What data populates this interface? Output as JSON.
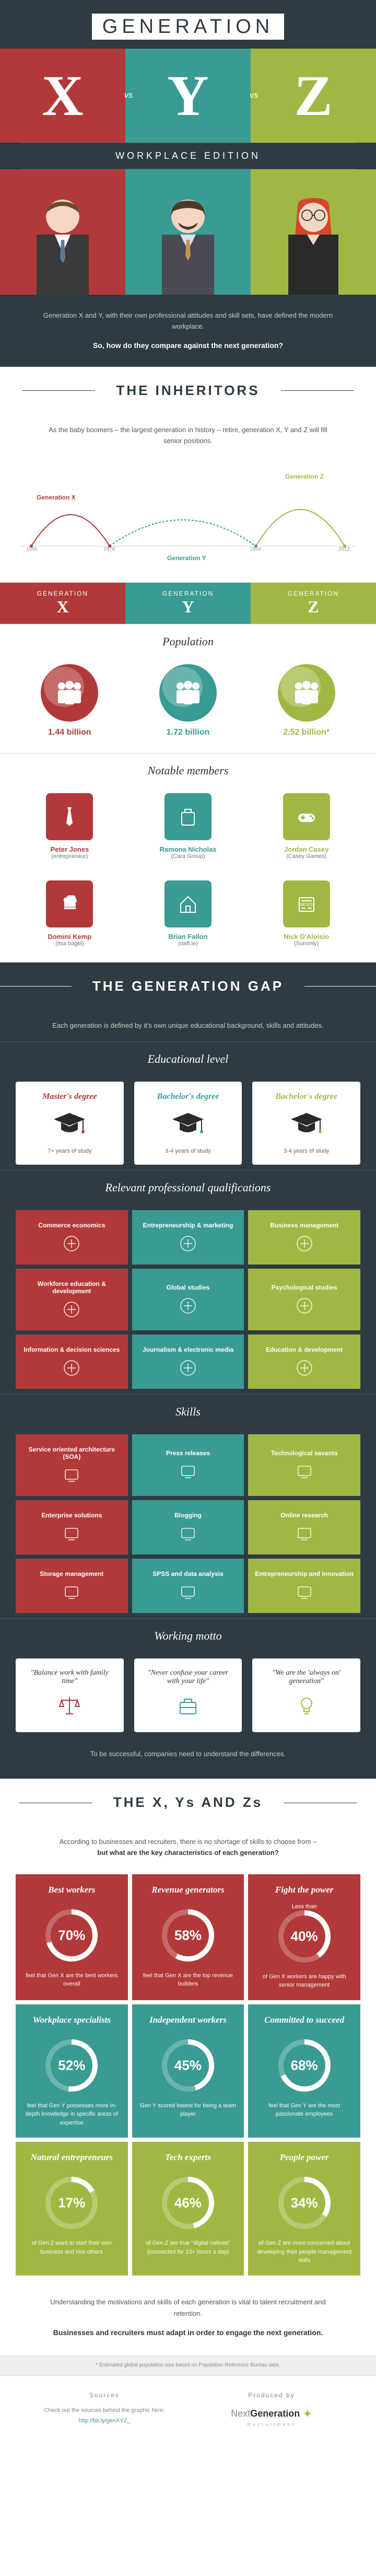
{
  "colors": {
    "x": "#b23939",
    "y": "#3a9b93",
    "z": "#a0b843",
    "dark": "#2e3b42"
  },
  "header": {
    "title_word": "GENERATION",
    "letters": [
      "X",
      "Y",
      "Z"
    ],
    "vs": "vs",
    "subtitle": "WORKPLACE EDITION"
  },
  "intro": {
    "p1": "Generation X and Y, with their own professional attitudes and skill sets, have defined the modern workplace.",
    "q": "So, how do they compare against the next generation?"
  },
  "inheritors": {
    "banner": "THE INHERITORS",
    "sub": "As the baby boomers – the largest generation in history – retire, generation X, Y and Z will fill senior positions.",
    "labels": {
      "x": "Generation X",
      "y": "Generation Y",
      "z": "Generation Z"
    },
    "years": {
      "x_start": "1966",
      "x_end": "1976",
      "y_start": "1977",
      "y_end": "1994",
      "z_start": "1995",
      "z_end": "2012"
    }
  },
  "genlabels": [
    {
      "g": "GENERATION",
      "l": "X",
      "color": "#b23939"
    },
    {
      "g": "GENERATION",
      "l": "Y",
      "color": "#3a9b93"
    },
    {
      "g": "GENERATION",
      "l": "Z",
      "color": "#a0b843"
    }
  ],
  "population": {
    "title": "Population",
    "items": [
      {
        "val": "1.44 billion",
        "color": "#b23939"
      },
      {
        "val": "1.72 billion",
        "color": "#3a9b93"
      },
      {
        "val": "2.52 billion*",
        "color": "#a0b843"
      }
    ]
  },
  "notable": {
    "title": "Notable members",
    "row1": [
      {
        "name": "Peter Jones",
        "sub": "(entrepreneur)",
        "color": "#b23939",
        "icon": "tie"
      },
      {
        "name": "Ramona Nicholas",
        "sub": "(Cara Group)",
        "color": "#3a9b93",
        "icon": "pharmacy"
      },
      {
        "name": "Jordan Casey",
        "sub": "(Casey Games)",
        "color": "#a0b843",
        "icon": "gamepad"
      }
    ],
    "row2": [
      {
        "name": "Domini Kemp",
        "sub": "(itsa bagel)",
        "color": "#b23939",
        "icon": "chef"
      },
      {
        "name": "Brian Fallon",
        "sub": "(daft.ie)",
        "color": "#3a9b93",
        "icon": "house"
      },
      {
        "name": "Nick D'Aloisio",
        "sub": "(Summly)",
        "color": "#a0b843",
        "icon": "news"
      }
    ]
  },
  "gap": {
    "banner": "THE GENERATION GAP",
    "sub": "Each generation is defined by it's own unique educational background, skills and attitudes.",
    "edu_title": "Educational level",
    "edu": [
      {
        "degree": "Master's degree",
        "years": "7+ years of study",
        "color": "#b23939"
      },
      {
        "degree": "Bachelor's degree",
        "years": "3-4 years of study",
        "color": "#3a9b93"
      },
      {
        "degree": "Bachelor's degree",
        "years": "3-4 years of study",
        "color": "#a0b843"
      }
    ],
    "qual_title": "Relevant professional qualifications",
    "quals": [
      {
        "t": "Commerce economics",
        "c": "#b23939"
      },
      {
        "t": "Entrepreneurship & marketing",
        "c": "#3a9b93"
      },
      {
        "t": "Business management",
        "c": "#a0b843"
      },
      {
        "t": "Workforce education & development",
        "c": "#b23939"
      },
      {
        "t": "Global studies",
        "c": "#3a9b93"
      },
      {
        "t": "Psychological studies",
        "c": "#a0b843"
      },
      {
        "t": "Information & decision sciences",
        "c": "#b23939"
      },
      {
        "t": "Journalism & electronic media",
        "c": "#3a9b93"
      },
      {
        "t": "Education & development",
        "c": "#a0b843"
      }
    ],
    "skill_title": "Skills",
    "skills": [
      {
        "t": "Service oriented architecture (SOA)",
        "c": "#b23939"
      },
      {
        "t": "Press releases",
        "c": "#3a9b93"
      },
      {
        "t": "Technological savants",
        "c": "#a0b843"
      },
      {
        "t": "Enterprise solutions",
        "c": "#b23939"
      },
      {
        "t": "Blogging",
        "c": "#3a9b93"
      },
      {
        "t": "Online research",
        "c": "#a0b843"
      },
      {
        "t": "Storage management",
        "c": "#b23939"
      },
      {
        "t": "SPSS and data analysis",
        "c": "#3a9b93"
      },
      {
        "t": "Entrepreneurship and innovation",
        "c": "#a0b843"
      }
    ],
    "motto_title": "Working motto",
    "mottos": [
      {
        "t": "\"Balance work with family time\"",
        "c": "#b23939",
        "icon": "scale"
      },
      {
        "t": "\"Never confuse your career with your life\"",
        "c": "#3a9b93",
        "icon": "briefcase"
      },
      {
        "t": "\"We are the 'always on' generation\"",
        "c": "#a0b843",
        "icon": "bulb"
      }
    ],
    "footer": "To be successful, companies need to understand the differences."
  },
  "xyzs": {
    "banner": "THE X, Ys AND Zs",
    "sub_a": "According to businesses and recruiters, there is no shortage of skills to choose from –",
    "sub_b": "but what are the key characteristics of each generation?",
    "traits": [
      {
        "title": "Best workers",
        "pct": 70,
        "desc": "feel that Gen X are the best workers overall",
        "c": "#b23939"
      },
      {
        "title": "Revenue generators",
        "pct": 58,
        "desc": "feel that Gen X are the top revenue builders",
        "c": "#b23939"
      },
      {
        "title": "Fight the power",
        "pct": 40,
        "desc": "of Gen X workers are happy with senior management",
        "c": "#b23939",
        "lessthan": "Less than"
      },
      {
        "title": "Workplace specialists",
        "pct": 52,
        "desc": "feel that Gen Y possesses more in-depth knowledge in specific areas of expertise",
        "c": "#3a9b93"
      },
      {
        "title": "Independent workers",
        "pct": 45,
        "desc": "Gen Y scored lowest for being a team player",
        "c": "#3a9b93"
      },
      {
        "title": "Committed to succeed",
        "pct": 68,
        "desc": "feel that Gen Y are the most passionate employees",
        "c": "#3a9b93"
      },
      {
        "title": "Natural entrepreneurs",
        "pct": 17,
        "desc": "of Gen Z want to start their own business and hire others",
        "c": "#a0b843"
      },
      {
        "title": "Tech experts",
        "pct": 46,
        "desc": "of Gen Z are true \"digital natives\" (connected for 10+ hours a day)",
        "c": "#a0b843"
      },
      {
        "title": "People power",
        "pct": 34,
        "desc": "of Gen Z are more concerned about developing their people-management skills",
        "c": "#a0b843"
      }
    ],
    "final1": "Understanding the motivations and skills of each generation is vital to talent recruitment and retention.",
    "final2": "Businesses and recruiters must adapt in order to engage the next generation."
  },
  "footnote": "* Estimated global population size based on Population Reference Bureau data.",
  "footer": {
    "sources_h": "Sources",
    "sources_t": "Check out the sources behind the graphic here:",
    "sources_link": "http://bit.ly/genXYZ_",
    "produced_h": "Produced by",
    "logo_next": "Next",
    "logo_gen": "Generation",
    "logo_rec": "Recruitment"
  }
}
